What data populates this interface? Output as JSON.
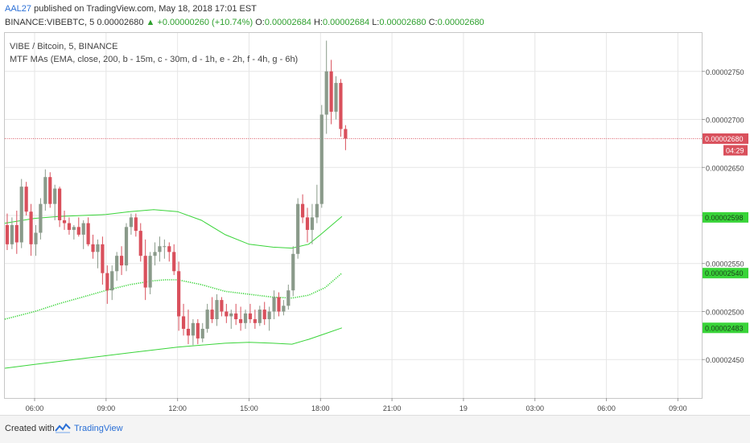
{
  "header": {
    "author": "AAL27",
    "published_text": "published on TradingView.com, May 18, 2018 17:01 EST",
    "symbol_line": "BINANCE:VIBEBTC, 5",
    "last": "0.00002680",
    "change": "▲ +0.00000260 (+10.74%)",
    "o_label": "O:",
    "o_value": "0.00002684",
    "h_label": "H:",
    "h_value": "0.00002684",
    "l_label": "L:",
    "l_value": "0.00002680",
    "c_label": "C:",
    "c_value": "0.00002680"
  },
  "chart_title": "VIBE / Bitcoin, 5, BINANCE",
  "indicator_label": "MTF MAs (EMA, close, 200, b - 15m, c - 30m, d - 1h, e - 2h, f - 4h, g - 6h)",
  "footer": {
    "created_with": "Created with",
    "brand": "TradingView"
  },
  "colors": {
    "up": "#8a9a8a",
    "down": "#d9505c",
    "ma": "#39d439",
    "price_line": "#d9505c",
    "grid": "#e6e6e6",
    "label_green": "#39d439"
  },
  "chart_data": {
    "type": "line",
    "title": "VIBE / Bitcoin, 5, BINANCE",
    "ylim": [
      2.41e-05,
      2.79e-05
    ],
    "xlim": [
      4.75,
      34.0
    ],
    "y_ticks": [
      {
        "value": 2.75e-05,
        "label": "0.00002750"
      },
      {
        "value": 2.7e-05,
        "label": "0.00002700"
      },
      {
        "value": 2.65e-05,
        "label": "0.00002650"
      },
      {
        "value": 2.6e-05,
        "label": "0.00002600"
      },
      {
        "value": 2.55e-05,
        "label": "0.00002550"
      },
      {
        "value": 2.5e-05,
        "label": "0.00002500"
      },
      {
        "value": 2.45e-05,
        "label": "0.00002450"
      }
    ],
    "x_ticks": [
      {
        "value": 6,
        "label": "06:00"
      },
      {
        "value": 9,
        "label": "09:00"
      },
      {
        "value": 12,
        "label": "12:00"
      },
      {
        "value": 15,
        "label": "15:00"
      },
      {
        "value": 18,
        "label": "18:00"
      },
      {
        "value": 21,
        "label": "21:00"
      },
      {
        "value": 24,
        "label": "19"
      },
      {
        "value": 27,
        "label": "03:00"
      },
      {
        "value": 30,
        "label": "06:00"
      },
      {
        "value": 33,
        "label": "09:00"
      }
    ],
    "price_labels": [
      {
        "value": 2.68e-05,
        "label": "0.00002680",
        "sub": "04:29",
        "kind": "current"
      },
      {
        "value": 2.598e-05,
        "label": "0.00002598",
        "kind": "ma"
      },
      {
        "value": 2.54e-05,
        "label": "0.00002540",
        "kind": "ma"
      },
      {
        "value": 2.483e-05,
        "label": "0.00002483",
        "kind": "ma"
      }
    ],
    "series": [
      {
        "style": "solid",
        "x": [
          4.75,
          6,
          7,
          8,
          9,
          10,
          11,
          12,
          13,
          14,
          15,
          16,
          16.8,
          17.5,
          18,
          18.9
        ],
        "y": [
          2.592e-05,
          2.597e-05,
          2.599e-05,
          2.6e-05,
          2.601e-05,
          2.604e-05,
          2.606e-05,
          2.604e-05,
          2.595e-05,
          2.58e-05,
          2.57e-05,
          2.567e-05,
          2.566e-05,
          2.57e-05,
          2.58e-05,
          2.599e-05
        ]
      },
      {
        "style": "dotted",
        "x": [
          4.75,
          6,
          7,
          8,
          9,
          10,
          11,
          11.5,
          12,
          13,
          14,
          15,
          16,
          16.8,
          17.5,
          18.2,
          18.9
        ],
        "y": [
          2.492e-05,
          2.5e-05,
          2.508e-05,
          2.515e-05,
          2.522e-05,
          2.528e-05,
          2.532e-05,
          2.533e-05,
          2.533e-05,
          2.528e-05,
          2.521e-05,
          2.518e-05,
          2.515e-05,
          2.514e-05,
          2.517e-05,
          2.525e-05,
          2.54e-05
        ]
      },
      {
        "style": "solid",
        "x": [
          4.75,
          6,
          7,
          8,
          9,
          10,
          11,
          12,
          13,
          14,
          15,
          16,
          16.8,
          17.5,
          18.2,
          18.9
        ],
        "y": [
          2.441e-05,
          2.445e-05,
          2.448e-05,
          2.451e-05,
          2.454e-05,
          2.457e-05,
          2.46e-05,
          2.463e-05,
          2.465e-05,
          2.467e-05,
          2.468e-05,
          2.467e-05,
          2.466e-05,
          2.471e-05,
          2.477e-05,
          2.483e-05
        ]
      }
    ],
    "candles": [
      {
        "x": 4.85,
        "o": 2.59e-05,
        "h": 2.602e-05,
        "l": 2.564e-05,
        "c": 2.57e-05
      },
      {
        "x": 5.05,
        "o": 2.57e-05,
        "h": 2.598e-05,
        "l": 2.565e-05,
        "c": 2.59e-05
      },
      {
        "x": 5.25,
        "o": 2.59e-05,
        "h": 2.605e-05,
        "l": 2.56e-05,
        "c": 2.572e-05
      },
      {
        "x": 5.45,
        "o": 2.572e-05,
        "h": 2.638e-05,
        "l": 2.566e-05,
        "c": 2.63e-05
      },
      {
        "x": 5.65,
        "o": 2.63e-05,
        "h": 2.635e-05,
        "l": 2.6e-05,
        "c": 2.604e-05
      },
      {
        "x": 5.85,
        "o": 2.604e-05,
        "h": 2.612e-05,
        "l": 2.558e-05,
        "c": 2.57e-05
      },
      {
        "x": 6.05,
        "o": 2.57e-05,
        "h": 2.59e-05,
        "l": 2.558e-05,
        "c": 2.582e-05
      },
      {
        "x": 6.25,
        "o": 2.582e-05,
        "h": 2.618e-05,
        "l": 2.575e-05,
        "c": 2.612e-05
      },
      {
        "x": 6.45,
        "o": 2.612e-05,
        "h": 2.648e-05,
        "l": 2.605e-05,
        "c": 2.64e-05
      },
      {
        "x": 6.65,
        "o": 2.64e-05,
        "h": 2.645e-05,
        "l": 2.608e-05,
        "c": 2.612e-05
      },
      {
        "x": 6.85,
        "o": 2.612e-05,
        "h": 2.632e-05,
        "l": 2.595e-05,
        "c": 2.628e-05
      },
      {
        "x": 7.05,
        "o": 2.628e-05,
        "h": 2.63e-05,
        "l": 2.588e-05,
        "c": 2.595e-05
      },
      {
        "x": 7.25,
        "o": 2.595e-05,
        "h": 2.605e-05,
        "l": 2.585e-05,
        "c": 2.592e-05
      },
      {
        "x": 7.45,
        "o": 2.592e-05,
        "h": 2.598e-05,
        "l": 2.58e-05,
        "c": 2.585e-05
      },
      {
        "x": 7.65,
        "o": 2.585e-05,
        "h": 2.59e-05,
        "l": 2.575e-05,
        "c": 2.588e-05
      },
      {
        "x": 7.85,
        "o": 2.588e-05,
        "h": 2.598e-05,
        "l": 2.578e-05,
        "c": 2.58e-05
      },
      {
        "x": 8.05,
        "o": 2.58e-05,
        "h": 2.595e-05,
        "l": 2.565e-05,
        "c": 2.592e-05
      },
      {
        "x": 8.25,
        "o": 2.592e-05,
        "h": 2.598e-05,
        "l": 2.568e-05,
        "c": 2.57e-05
      },
      {
        "x": 8.45,
        "o": 2.57e-05,
        "h": 2.58e-05,
        "l": 2.555e-05,
        "c": 2.562e-05
      },
      {
        "x": 8.65,
        "o": 2.562e-05,
        "h": 2.575e-05,
        "l": 2.545e-05,
        "c": 2.57e-05
      },
      {
        "x": 8.85,
        "o": 2.57e-05,
        "h": 2.578e-05,
        "l": 2.528e-05,
        "c": 2.54e-05
      },
      {
        "x": 9.05,
        "o": 2.54e-05,
        "h": 2.548e-05,
        "l": 2.508e-05,
        "c": 2.522e-05
      },
      {
        "x": 9.25,
        "o": 2.522e-05,
        "h": 2.548e-05,
        "l": 2.512e-05,
        "c": 2.542e-05
      },
      {
        "x": 9.45,
        "o": 2.542e-05,
        "h": 2.562e-05,
        "l": 2.532e-05,
        "c": 2.558e-05
      },
      {
        "x": 9.65,
        "o": 2.558e-05,
        "h": 2.568e-05,
        "l": 2.538e-05,
        "c": 2.548e-05
      },
      {
        "x": 9.85,
        "o": 2.548e-05,
        "h": 2.592e-05,
        "l": 2.542e-05,
        "c": 2.588e-05
      },
      {
        "x": 10.05,
        "o": 2.588e-05,
        "h": 2.602e-05,
        "l": 2.58e-05,
        "c": 2.598e-05
      },
      {
        "x": 10.25,
        "o": 2.598e-05,
        "h": 2.602e-05,
        "l": 2.578e-05,
        "c": 2.584e-05
      },
      {
        "x": 10.45,
        "o": 2.584e-05,
        "h": 2.592e-05,
        "l": 2.552e-05,
        "c": 2.558e-05
      },
      {
        "x": 10.65,
        "o": 2.558e-05,
        "h": 2.575e-05,
        "l": 2.512e-05,
        "c": 2.525e-05
      },
      {
        "x": 10.85,
        "o": 2.525e-05,
        "h": 2.562e-05,
        "l": 2.518e-05,
        "c": 2.558e-05
      },
      {
        "x": 11.05,
        "o": 2.558e-05,
        "h": 2.572e-05,
        "l": 2.548e-05,
        "c": 2.562e-05
      },
      {
        "x": 11.25,
        "o": 2.562e-05,
        "h": 2.578e-05,
        "l": 2.552e-05,
        "c": 2.568e-05
      },
      {
        "x": 11.45,
        "o": 2.568e-05,
        "h": 2.575e-05,
        "l": 2.555e-05,
        "c": 2.568e-05
      },
      {
        "x": 11.65,
        "o": 2.568e-05,
        "h": 2.572e-05,
        "l": 2.552e-05,
        "c": 2.562e-05
      },
      {
        "x": 11.85,
        "o": 2.562e-05,
        "h": 2.57e-05,
        "l": 2.538e-05,
        "c": 2.542e-05
      },
      {
        "x": 12.05,
        "o": 2.542e-05,
        "h": 2.552e-05,
        "l": 2.48e-05,
        "c": 2.495e-05
      },
      {
        "x": 12.25,
        "o": 2.495e-05,
        "h": 2.508e-05,
        "l": 2.475e-05,
        "c": 2.482e-05
      },
      {
        "x": 12.45,
        "o": 2.482e-05,
        "h": 2.502e-05,
        "l": 2.466e-05,
        "c": 2.475e-05
      },
      {
        "x": 12.65,
        "o": 2.475e-05,
        "h": 2.492e-05,
        "l": 2.465e-05,
        "c": 2.488e-05
      },
      {
        "x": 12.85,
        "o": 2.488e-05,
        "h": 2.492e-05,
        "l": 2.466e-05,
        "c": 2.472e-05
      },
      {
        "x": 13.05,
        "o": 2.472e-05,
        "h": 2.488e-05,
        "l": 2.468e-05,
        "c": 2.482e-05
      },
      {
        "x": 13.25,
        "o": 2.482e-05,
        "h": 2.508e-05,
        "l": 2.478e-05,
        "c": 2.502e-05
      },
      {
        "x": 13.45,
        "o": 2.502e-05,
        "h": 2.515e-05,
        "l": 2.488e-05,
        "c": 2.492e-05
      },
      {
        "x": 13.65,
        "o": 2.492e-05,
        "h": 2.518e-05,
        "l": 2.485e-05,
        "c": 2.512e-05
      },
      {
        "x": 13.85,
        "o": 2.512e-05,
        "h": 2.515e-05,
        "l": 2.495e-05,
        "c": 2.5e-05
      },
      {
        "x": 14.05,
        "o": 2.5e-05,
        "h": 2.508e-05,
        "l": 2.488e-05,
        "c": 2.495e-05
      },
      {
        "x": 14.25,
        "o": 2.495e-05,
        "h": 2.502e-05,
        "l": 2.482e-05,
        "c": 2.498e-05
      },
      {
        "x": 14.45,
        "o": 2.498e-05,
        "h": 2.508e-05,
        "l": 2.486e-05,
        "c": 2.492e-05
      },
      {
        "x": 14.65,
        "o": 2.492e-05,
        "h": 2.505e-05,
        "l": 2.48e-05,
        "c": 2.488e-05
      },
      {
        "x": 14.85,
        "o": 2.488e-05,
        "h": 2.502e-05,
        "l": 2.482e-05,
        "c": 2.498e-05
      },
      {
        "x": 15.05,
        "o": 2.498e-05,
        "h": 2.508e-05,
        "l": 2.488e-05,
        "c": 2.492e-05
      },
      {
        "x": 15.25,
        "o": 2.492e-05,
        "h": 2.502e-05,
        "l": 2.482e-05,
        "c": 2.488e-05
      },
      {
        "x": 15.45,
        "o": 2.488e-05,
        "h": 2.506e-05,
        "l": 2.485e-05,
        "c": 2.502e-05
      },
      {
        "x": 15.65,
        "o": 2.502e-05,
        "h": 2.51e-05,
        "l": 2.486e-05,
        "c": 2.492e-05
      },
      {
        "x": 15.85,
        "o": 2.492e-05,
        "h": 2.505e-05,
        "l": 2.48e-05,
        "c": 2.5e-05
      },
      {
        "x": 16.05,
        "o": 2.5e-05,
        "h": 2.522e-05,
        "l": 2.492e-05,
        "c": 2.515e-05
      },
      {
        "x": 16.25,
        "o": 2.515e-05,
        "h": 2.52e-05,
        "l": 2.495e-05,
        "c": 2.5e-05
      },
      {
        "x": 16.45,
        "o": 2.5e-05,
        "h": 2.512e-05,
        "l": 2.496e-05,
        "c": 2.506e-05
      },
      {
        "x": 16.65,
        "o": 2.506e-05,
        "h": 2.528e-05,
        "l": 2.502e-05,
        "c": 2.522e-05
      },
      {
        "x": 16.85,
        "o": 2.522e-05,
        "h": 2.568e-05,
        "l": 2.516e-05,
        "c": 2.56e-05
      },
      {
        "x": 17.05,
        "o": 2.56e-05,
        "h": 2.618e-05,
        "l": 2.555e-05,
        "c": 2.612e-05
      },
      {
        "x": 17.25,
        "o": 2.612e-05,
        "h": 2.622e-05,
        "l": 2.592e-05,
        "c": 2.598e-05
      },
      {
        "x": 17.45,
        "o": 2.598e-05,
        "h": 2.608e-05,
        "l": 2.572e-05,
        "c": 2.585e-05
      },
      {
        "x": 17.65,
        "o": 2.585e-05,
        "h": 2.612e-05,
        "l": 2.57e-05,
        "c": 2.598e-05
      },
      {
        "x": 17.85,
        "o": 2.598e-05,
        "h": 2.632e-05,
        "l": 2.592e-05,
        "c": 2.612e-05
      },
      {
        "x": 18.05,
        "o": 2.612e-05,
        "h": 2.715e-05,
        "l": 2.608e-05,
        "c": 2.705e-05
      },
      {
        "x": 18.25,
        "o": 2.705e-05,
        "h": 2.782e-05,
        "l": 2.685e-05,
        "c": 2.75e-05
      },
      {
        "x": 18.45,
        "o": 2.75e-05,
        "h": 2.762e-05,
        "l": 2.695e-05,
        "c": 2.708e-05
      },
      {
        "x": 18.65,
        "o": 2.708e-05,
        "h": 2.745e-05,
        "l": 2.7e-05,
        "c": 2.738e-05
      },
      {
        "x": 18.85,
        "o": 2.738e-05,
        "h": 2.742e-05,
        "l": 2.682e-05,
        "c": 2.69e-05
      },
      {
        "x": 19.05,
        "o": 2.69e-05,
        "h": 2.694e-05,
        "l": 2.668e-05,
        "c": 2.68e-05
      }
    ]
  }
}
